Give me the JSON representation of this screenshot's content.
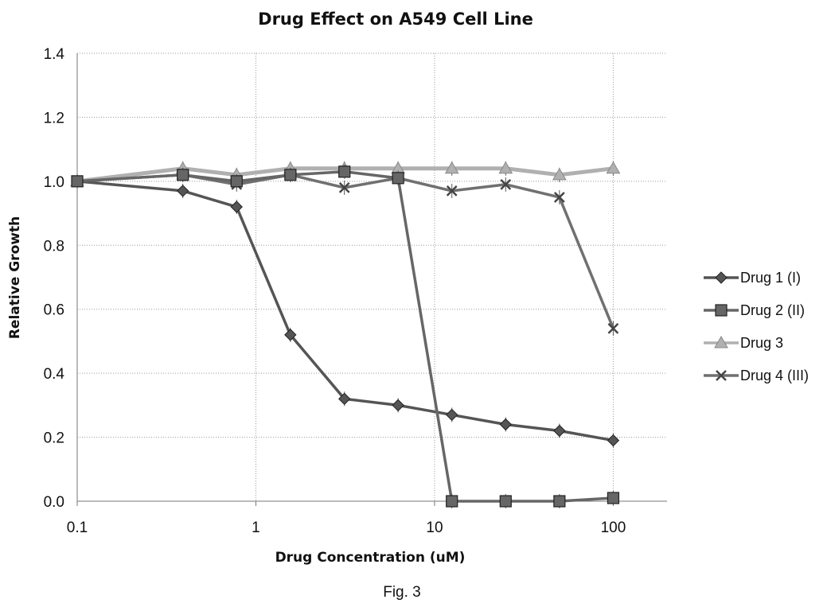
{
  "figure": {
    "caption": "Fig. 3"
  },
  "chart_data": {
    "type": "line",
    "title": "Drug Effect on A549 Cell Line",
    "xlabel": "Drug Concentration (uM)",
    "ylabel": "Relative Growth",
    "xscale": "log",
    "xlim": [
      0.1,
      200
    ],
    "ylim": [
      0.0,
      1.4
    ],
    "xticks": [
      0.1,
      1,
      10,
      100
    ],
    "xtick_labels": [
      "0.1",
      "1",
      "10",
      "100"
    ],
    "yticks": [
      0.0,
      0.2,
      0.4,
      0.6,
      0.8,
      1.0,
      1.2,
      1.4
    ],
    "ytick_labels": [
      "0.0",
      "0.2",
      "0.4",
      "0.6",
      "0.8",
      "1.0",
      "1.2",
      "1.4"
    ],
    "grid": true,
    "legend_position": "right",
    "series": [
      {
        "name": "Drug 1",
        "label_suffix": "(I)",
        "marker": "diamond",
        "color": "#555555",
        "points": [
          [
            0.1,
            1.0
          ],
          [
            0.39,
            0.97
          ],
          [
            0.78,
            0.92
          ],
          [
            1.56,
            0.52
          ],
          [
            3.13,
            0.32
          ],
          [
            6.25,
            0.3
          ],
          [
            12.5,
            0.27
          ],
          [
            25,
            0.24
          ],
          [
            50,
            0.22
          ],
          [
            100,
            0.19
          ]
        ]
      },
      {
        "name": "Drug 2",
        "label_suffix": "(II)",
        "marker": "square",
        "color": "#666666",
        "points": [
          [
            0.1,
            1.0
          ],
          [
            0.39,
            1.02
          ],
          [
            0.78,
            1.0
          ],
          [
            1.56,
            1.02
          ],
          [
            3.13,
            1.03
          ],
          [
            6.25,
            1.01
          ],
          [
            12.5,
            0.0
          ],
          [
            25,
            0.0
          ],
          [
            50,
            0.0
          ],
          [
            100,
            0.01
          ]
        ]
      },
      {
        "name": "Drug 3",
        "label_suffix": "",
        "marker": "triangle",
        "color": "#b0b0b0",
        "points": [
          [
            0.1,
            1.0
          ],
          [
            0.39,
            1.04
          ],
          [
            0.78,
            1.02
          ],
          [
            1.56,
            1.04
          ],
          [
            3.13,
            1.04
          ],
          [
            6.25,
            1.04
          ],
          [
            12.5,
            1.04
          ],
          [
            25,
            1.04
          ],
          [
            50,
            1.02
          ],
          [
            100,
            1.04
          ]
        ]
      },
      {
        "name": "Drug 4",
        "label_suffix": "(III)",
        "marker": "x",
        "color": "#707070",
        "points": [
          [
            0.1,
            1.0
          ],
          [
            0.39,
            1.02
          ],
          [
            0.78,
            0.99
          ],
          [
            1.56,
            1.02
          ],
          [
            3.13,
            0.98
          ],
          [
            6.25,
            1.01
          ],
          [
            12.5,
            0.97
          ],
          [
            25,
            0.99
          ],
          [
            50,
            0.95
          ],
          [
            100,
            0.54
          ]
        ]
      }
    ]
  }
}
